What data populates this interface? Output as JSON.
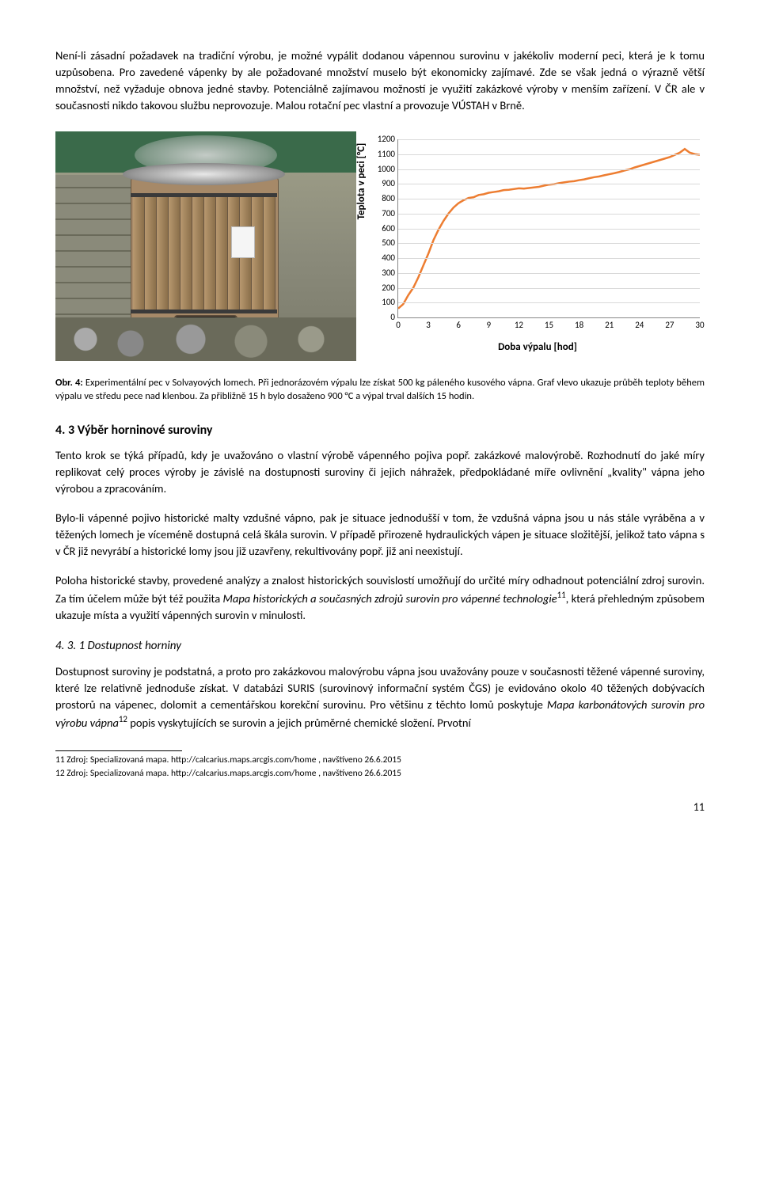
{
  "para1": "Není-li zásadní požadavek na tradiční výrobu, je možné vypálit dodanou vápennou surovinu v jakékoliv moderní peci, která je k tomu uzpůsobena. Pro zavedené vápenky by ale požadované množství muselo být ekonomicky zajímavé. Zde se však jedná o výrazně větší množství, než vyžaduje obnova jedné stavby. Potenciálně zajímavou možností je využití zakázkové výroby v menším zařízení. V ČR ale v současnosti nikdo takovou službu neprovozuje. Malou rotační pec vlastní a provozuje VÚSTAH v Brně.",
  "chart": {
    "type": "line",
    "ylabel": "Teplota v peci [°C]",
    "xlabel": "Doba výpalu [hod]",
    "ylim": [
      0,
      1200
    ],
    "ytick_step": 100,
    "xlim": [
      0,
      30
    ],
    "xtick_step": 3,
    "line_color": "#ed7d31",
    "line_width": 2.5,
    "grid_color": "#d9d9d9",
    "axis_color": "#888888",
    "background": "#ffffff",
    "tick_fontsize": 11,
    "label_fontsize": 13,
    "points": [
      [
        0,
        60
      ],
      [
        0.5,
        90
      ],
      [
        1,
        150
      ],
      [
        1.5,
        200
      ],
      [
        2,
        270
      ],
      [
        2.5,
        350
      ],
      [
        3,
        430
      ],
      [
        3.5,
        520
      ],
      [
        4,
        590
      ],
      [
        4.5,
        650
      ],
      [
        5,
        700
      ],
      [
        5.5,
        740
      ],
      [
        6,
        770
      ],
      [
        6.5,
        790
      ],
      [
        7,
        805
      ],
      [
        7.5,
        810
      ],
      [
        8,
        825
      ],
      [
        8.5,
        830
      ],
      [
        9,
        840
      ],
      [
        9.5,
        845
      ],
      [
        10,
        850
      ],
      [
        10.5,
        858
      ],
      [
        11,
        860
      ],
      [
        11.5,
        865
      ],
      [
        12,
        870
      ],
      [
        12.5,
        868
      ],
      [
        13,
        872
      ],
      [
        13.5,
        876
      ],
      [
        14,
        880
      ],
      [
        14.5,
        888
      ],
      [
        15,
        895
      ],
      [
        15.5,
        898
      ],
      [
        16,
        905
      ],
      [
        16.5,
        910
      ],
      [
        17,
        915
      ],
      [
        17.5,
        918
      ],
      [
        18,
        925
      ],
      [
        18.5,
        930
      ],
      [
        19,
        938
      ],
      [
        19.5,
        945
      ],
      [
        20,
        950
      ],
      [
        20.5,
        958
      ],
      [
        21,
        965
      ],
      [
        21.5,
        972
      ],
      [
        22,
        980
      ],
      [
        22.5,
        990
      ],
      [
        23,
        998
      ],
      [
        23.5,
        1010
      ],
      [
        24,
        1020
      ],
      [
        24.5,
        1030
      ],
      [
        25,
        1040
      ],
      [
        25.5,
        1050
      ],
      [
        26,
        1060
      ],
      [
        26.5,
        1070
      ],
      [
        27,
        1080
      ],
      [
        27.5,
        1095
      ],
      [
        28,
        1110
      ],
      [
        28.5,
        1135
      ],
      [
        29,
        1110
      ],
      [
        29.5,
        1100
      ],
      [
        30,
        1095
      ]
    ]
  },
  "caption_lead": "Obr. 4:",
  "caption_rest": " Experimentální pec v Solvayových lomech. Při jednorázovém výpalu lze získat 500 kg páleného kusového vápna. Graf vlevo ukazuje průběh teploty během výpalu ve středu pece nad klenbou. Za přibližně 15 h bylo dosaženo 900 °C a výpal trval dalších 15 hodin.",
  "sec_title": "4. 3 Výběr horninové suroviny",
  "para2": "Tento krok se týká případů, kdy je uvažováno o vlastní výrobě vápenného pojiva popř. zakázkové malovýrobě. Rozhodnutí do jaké míry replikovat celý proces výroby je závislé na dostupnosti suroviny či jejich náhražek, předpokládané míře ovlivnění „kvality\" vápna jeho výrobou a zpracováním.",
  "para3": "Bylo-li vápenné pojivo historické malty vzdušné vápno, pak je situace jednodušší v tom, že vzdušná vápna jsou u nás stále vyráběna a v těžených lomech je víceméně dostupná celá škála surovin. V případě přirozeně hydraulických vápen je situace složitější, jelikož tato vápna s v ČR již nevyrábí a historické lomy jsou již uzavřeny, rekultivovány popř. již ani neexistují.",
  "para4a": "Poloha historické stavby, provedené analýzy a znalost historických souvislostí umožňují do určité míry odhadnout potenciální zdroj surovin. Za tím účelem může být též použita ",
  "para4_italic": "Mapa historických a současných zdrojů surovin pro vápenné technologie",
  "para4_sup": "11",
  "para4b": ", která přehledným způsobem ukazuje místa a využití vápenných surovin v minulosti.",
  "subsec_title": "4. 3. 1 Dostupnost horniny",
  "para5a": "Dostupnost suroviny je podstatná, a proto pro zakázkovou malovýrobu vápna jsou uvažovány pouze v současnosti těžené vápenné suroviny, které lze relativně jednoduše získat. V databázi SURIS (surovinový informační systém ČGS) je evidováno okolo 40 těžených dobývacích prostorů na vápenec, dolomit a cementářskou korekční surovinu. Pro většinu z těchto lomů poskytuje ",
  "para5_italic": "Mapa karbonátových surovin pro výrobu vápna",
  "para5_sup": "12",
  "para5b": "  popis vyskytujících se surovin a jejich průměrné chemické složení. Prvotní",
  "fn11": "11 Zdroj: Specializovaná mapa. http://calcarius.maps.arcgis.com/home , navštíveno 26.6.2015",
  "fn12": "12 Zdroj: Specializovaná mapa. http://calcarius.maps.arcgis.com/home , navštíveno 26.6.2015",
  "page_number": "11"
}
